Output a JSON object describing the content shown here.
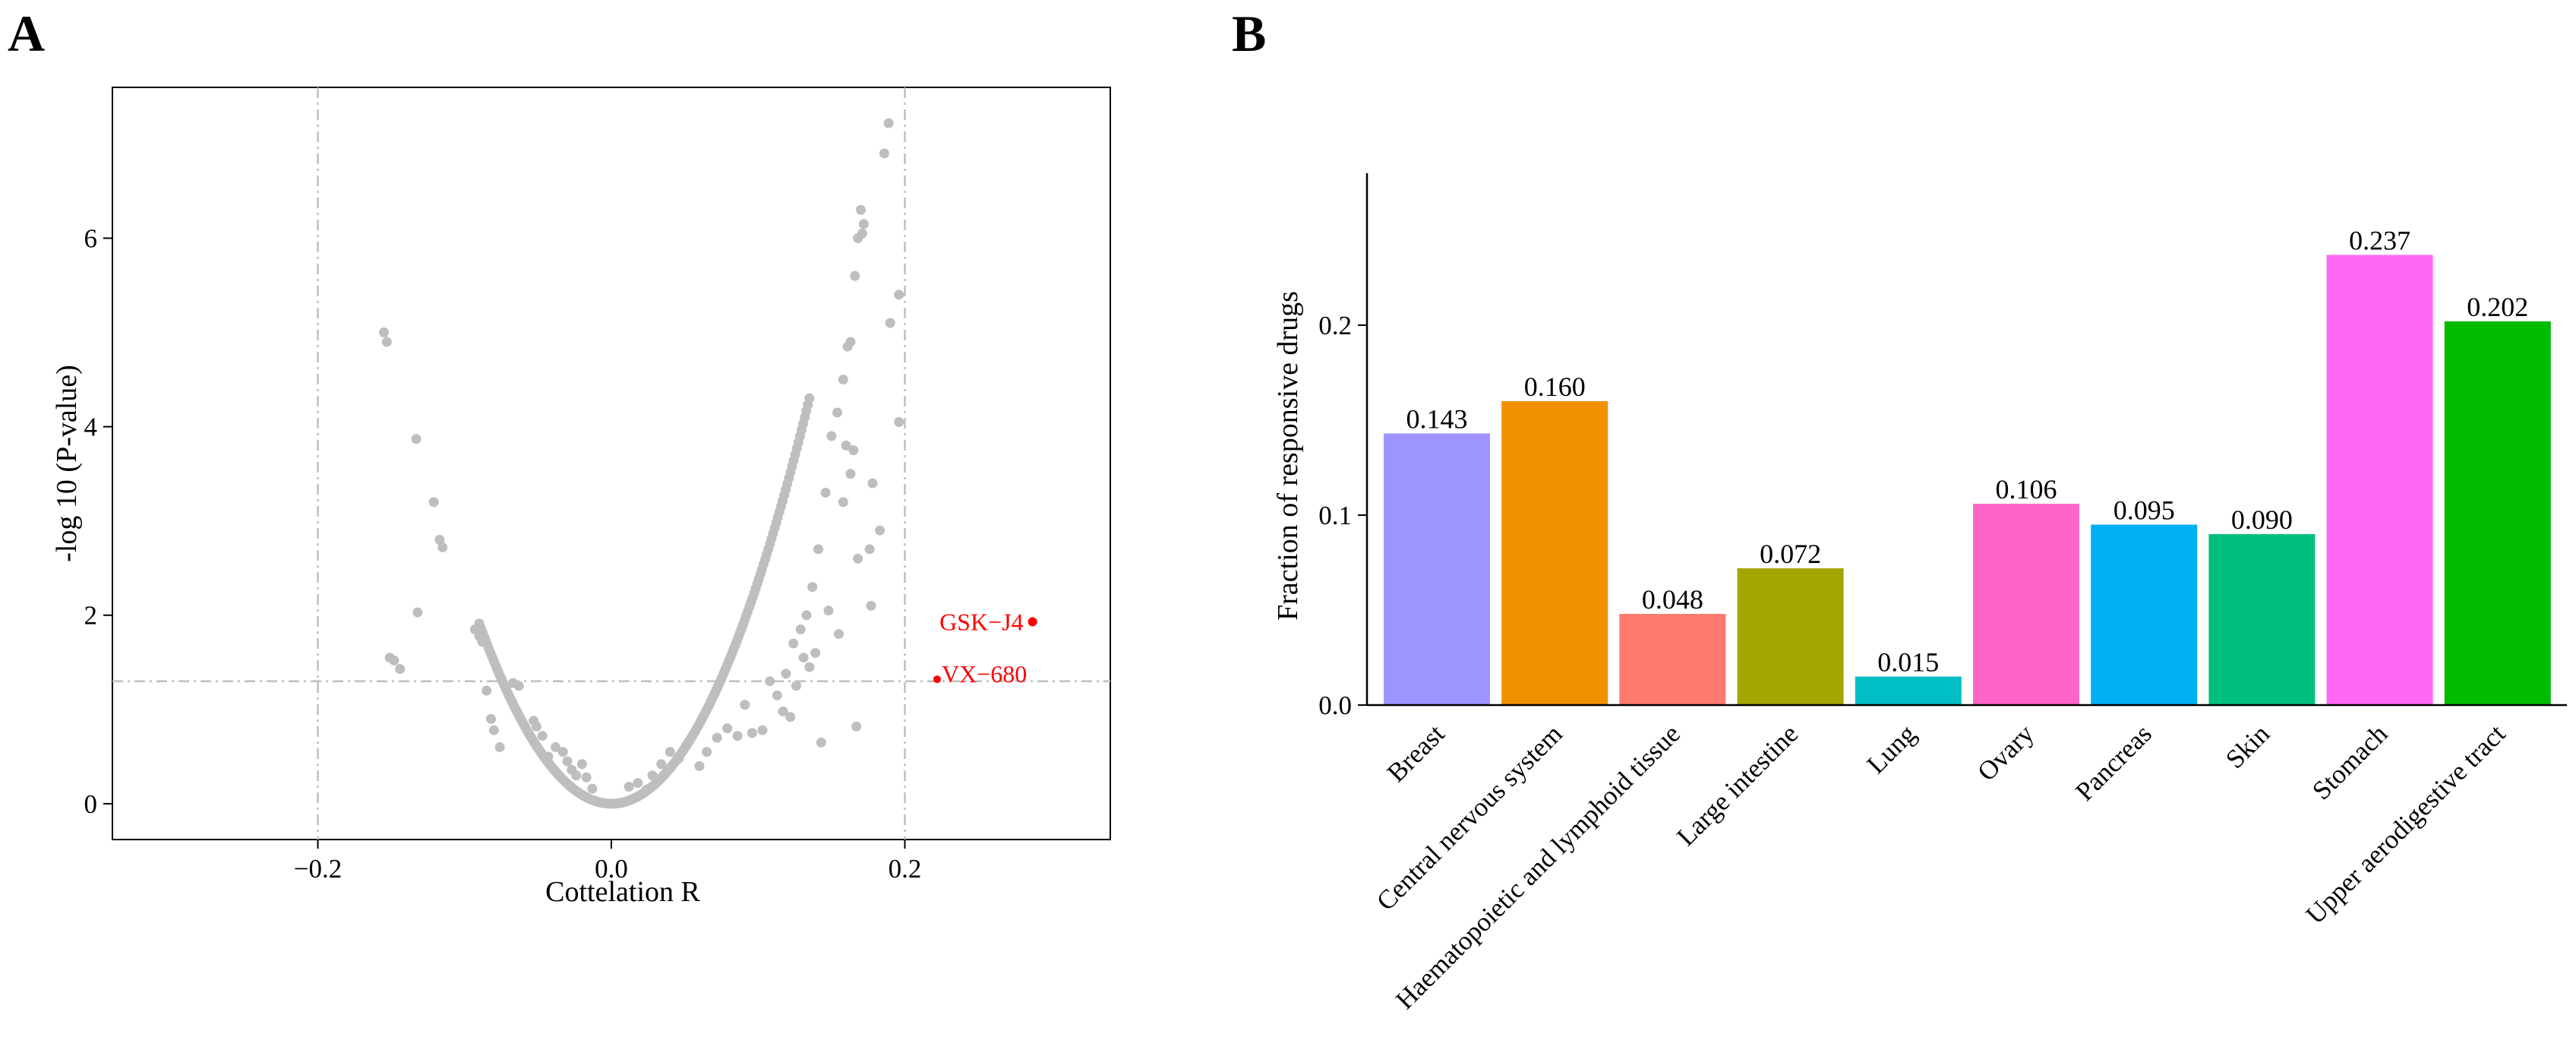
{
  "panels": {
    "a": {
      "letter": "A"
    },
    "b": {
      "letter": "B"
    }
  },
  "colors": {
    "point": "#bebebe",
    "highlight": "#ff0000",
    "guide": "#bfbfbf"
  },
  "chart_data": [
    {
      "type": "scatter",
      "title": "",
      "xlabel": "Cottelation R",
      "ylabel": "-log 10 (P-value)",
      "xlim": [
        -0.34,
        0.34
      ],
      "ylim": [
        -0.38,
        7.6
      ],
      "xticks": [
        -0.2,
        0.0,
        0.2
      ],
      "xtick_labels": [
        "−0.2",
        "0.0",
        "0.2"
      ],
      "yticks": [
        0,
        2,
        4,
        6
      ],
      "ytick_labels": [
        "0",
        "2",
        "4",
        "6"
      ],
      "threshold_lines": {
        "x": [
          -0.2,
          0.2
        ],
        "y": [
          1.3
        ]
      },
      "curve_trend": {
        "description": "points follow y = 236 * x^2",
        "coefficient": 236,
        "x_range": [
          -0.09,
          0.135
        ],
        "n": 210
      },
      "points": [
        [
          -0.155,
          5.0
        ],
        [
          -0.153,
          4.9
        ],
        [
          -0.133,
          3.87
        ],
        [
          -0.121,
          3.2
        ],
        [
          -0.117,
          2.8
        ],
        [
          -0.115,
          2.72
        ],
        [
          -0.132,
          2.03
        ],
        [
          -0.151,
          1.55
        ],
        [
          -0.148,
          1.52
        ],
        [
          -0.144,
          1.43
        ],
        [
          -0.093,
          1.85
        ],
        [
          -0.09,
          1.78
        ],
        [
          -0.088,
          1.72
        ],
        [
          -0.085,
          1.2
        ],
        [
          -0.082,
          0.9
        ],
        [
          -0.08,
          0.78
        ],
        [
          -0.076,
          0.6
        ],
        [
          -0.067,
          1.28
        ],
        [
          -0.063,
          1.25
        ],
        [
          -0.053,
          0.88
        ],
        [
          -0.051,
          0.82
        ],
        [
          -0.047,
          0.72
        ],
        [
          -0.043,
          0.5
        ],
        [
          -0.038,
          0.6
        ],
        [
          -0.033,
          0.55
        ],
        [
          -0.03,
          0.45
        ],
        [
          -0.027,
          0.36
        ],
        [
          -0.024,
          0.3
        ],
        [
          -0.02,
          0.42
        ],
        [
          -0.017,
          0.28
        ],
        [
          -0.013,
          0.16
        ],
        [
          0.012,
          0.18
        ],
        [
          0.018,
          0.22
        ],
        [
          0.024,
          0.15
        ],
        [
          0.028,
          0.3
        ],
        [
          0.034,
          0.42
        ],
        [
          0.04,
          0.55
        ],
        [
          0.046,
          0.48
        ],
        [
          0.051,
          0.62
        ],
        [
          0.06,
          0.4
        ],
        [
          0.065,
          0.55
        ],
        [
          0.072,
          0.7
        ],
        [
          0.079,
          0.8
        ],
        [
          0.086,
          0.72
        ],
        [
          0.091,
          1.05
        ],
        [
          0.096,
          0.75
        ],
        [
          0.103,
          0.78
        ],
        [
          0.108,
          1.3
        ],
        [
          0.113,
          1.15
        ],
        [
          0.119,
          1.38
        ],
        [
          0.124,
          1.7
        ],
        [
          0.129,
          1.85
        ],
        [
          0.133,
          2.0
        ],
        [
          0.137,
          2.3
        ],
        [
          0.141,
          2.7
        ],
        [
          0.146,
          3.3
        ],
        [
          0.15,
          3.9
        ],
        [
          0.154,
          4.15
        ],
        [
          0.158,
          4.5
        ],
        [
          0.161,
          4.85
        ],
        [
          0.163,
          4.9
        ],
        [
          0.166,
          5.6
        ],
        [
          0.168,
          6.0
        ],
        [
          0.17,
          6.3
        ],
        [
          0.171,
          6.05
        ],
        [
          0.172,
          6.15
        ],
        [
          0.163,
          3.5
        ],
        [
          0.16,
          3.8
        ],
        [
          0.165,
          3.75
        ],
        [
          0.158,
          3.2
        ],
        [
          0.178,
          3.4
        ],
        [
          0.183,
          2.9
        ],
        [
          0.176,
          2.7
        ],
        [
          0.168,
          2.6
        ],
        [
          0.167,
          0.82
        ],
        [
          0.177,
          2.1
        ],
        [
          0.143,
          0.65
        ],
        [
          0.196,
          4.05
        ],
        [
          0.186,
          6.9
        ],
        [
          0.189,
          7.22
        ],
        [
          0.196,
          5.4
        ],
        [
          0.19,
          5.1
        ],
        [
          0.148,
          2.05
        ],
        [
          0.155,
          1.8
        ],
        [
          0.139,
          1.6
        ],
        [
          0.131,
          1.55
        ],
        [
          0.135,
          1.45
        ],
        [
          0.126,
          1.25
        ],
        [
          0.117,
          0.98
        ],
        [
          0.122,
          0.92
        ]
      ],
      "highlighted": [
        {
          "label": "GSK−J4",
          "x": 0.287,
          "y": 1.93
        },
        {
          "label": "VX−680",
          "x": 0.222,
          "y": 1.32
        }
      ]
    },
    {
      "type": "bar",
      "title": "",
      "xlabel": "",
      "ylabel": "Fraction of responsive drugs",
      "ylim": [
        0,
        0.28
      ],
      "yticks": [
        0.0,
        0.1,
        0.2
      ],
      "ytick_labels": [
        "0.0",
        "0.1",
        "0.2"
      ],
      "categories": [
        "Breast",
        "Central nervous system",
        "Haematopoietic and lymphoid tissue",
        "Large intestine",
        "Lung",
        "Ovary",
        "Pancreas",
        "Skin",
        "Stomach",
        "Upper aerodigestive tract"
      ],
      "values": [
        0.143,
        0.16,
        0.048,
        0.072,
        0.015,
        0.106,
        0.095,
        0.09,
        0.237,
        0.202
      ],
      "value_labels": [
        "0.143",
        "0.160",
        "0.048",
        "0.072",
        "0.015",
        "0.106",
        "0.095",
        "0.090",
        "0.237",
        "0.202"
      ],
      "bar_colors": [
        "#9e94ff",
        "#f29100",
        "#ff7a6e",
        "#a3a600",
        "#00bfc4",
        "#ff65c8",
        "#00b0f6",
        "#00bf7d",
        "#ff67f4",
        "#00bb00"
      ]
    }
  ]
}
